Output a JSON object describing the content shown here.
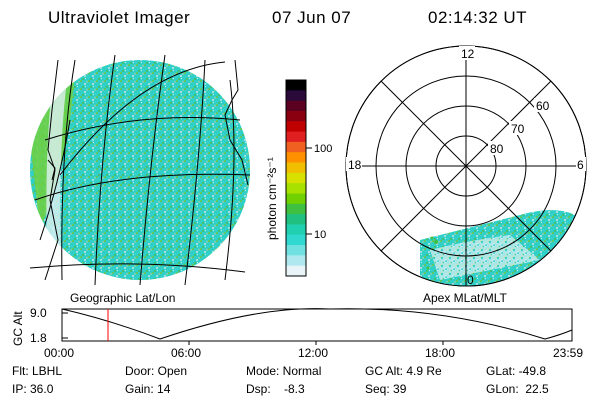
{
  "header": {
    "title": "Ultraviolet Imager",
    "date": "07 Jun 07",
    "time": "02:14:32 UT"
  },
  "left_panel": {
    "caption": "Geographic Lat/Lon"
  },
  "colorbar": {
    "label": "photon cm⁻²s⁻¹",
    "ticks": [
      "100",
      "10"
    ],
    "colors": [
      "#000000",
      "#2a0a3a",
      "#5a0020",
      "#8b0010",
      "#c00000",
      "#e02020",
      "#f06020",
      "#ff9000",
      "#f0c000",
      "#d8e000",
      "#a8e000",
      "#70d000",
      "#40c040",
      "#20c080",
      "#20d0b0",
      "#30d8d0",
      "#70e0e0",
      "#b0e8f0",
      "#e8f4f8"
    ]
  },
  "right_panel": {
    "caption": "Apex MLat/MLT",
    "hour_labels": [
      "12",
      "18",
      "6",
      "0"
    ],
    "lat_labels": [
      "60",
      "70",
      "80"
    ]
  },
  "timeline": {
    "y_label": "GC Alt",
    "y_ticks": [
      "9.0",
      "1.8"
    ],
    "x_ticks": [
      "00:00",
      "06:00",
      "12:00",
      "18:00",
      "23:59"
    ],
    "marker_color": "#ff0000"
  },
  "info": {
    "flt": "Flt: LBHL",
    "door": "Door: Open",
    "mode": "Mode: Normal",
    "gc_alt": "GC Alt: 4.9 Re",
    "glat": "GLat: -49.8",
    "ip": "IP: 36.0",
    "gain": "Gain: 14",
    "dsp": "Dsp:    -8.3",
    "seq": "Seq: 39",
    "glon": "GLon:  22.5"
  }
}
